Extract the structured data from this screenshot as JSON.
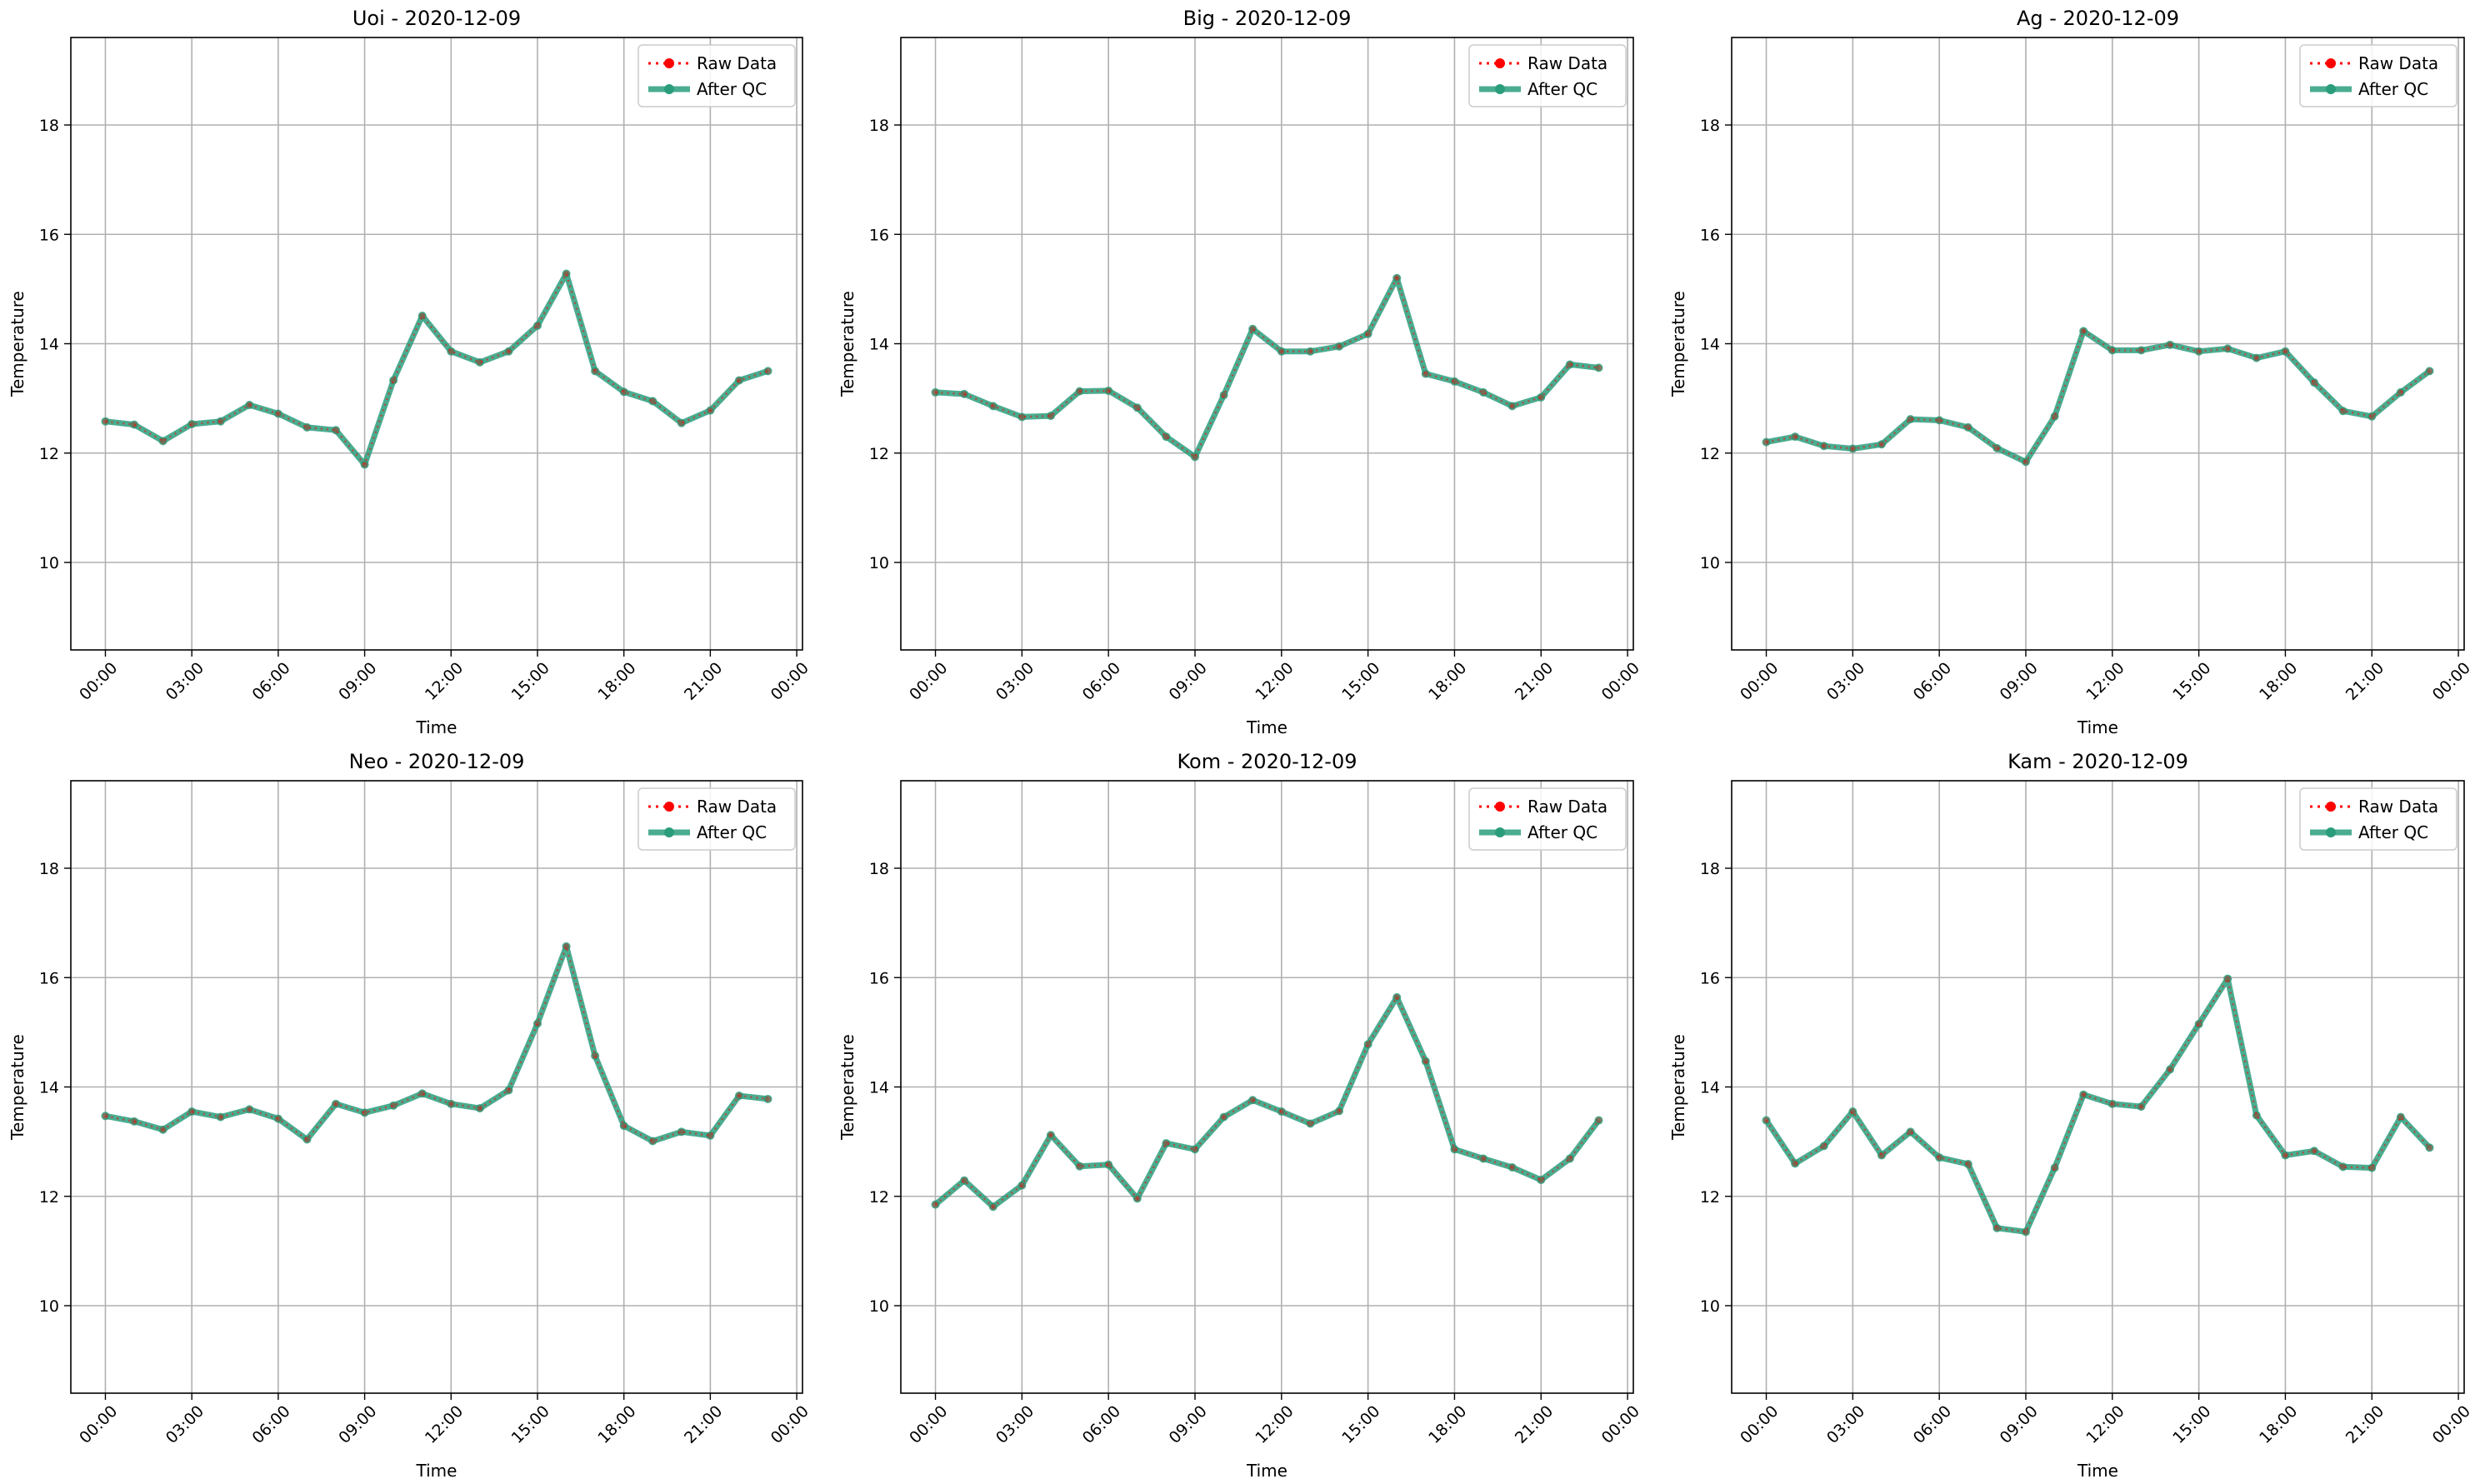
{
  "chart_data": [
    {
      "type": "line",
      "title": "Uoi - 2020-12-09",
      "xlabel": "Time",
      "ylabel": "Temperature",
      "x_ticks": [
        "00:00",
        "03:00",
        "06:00",
        "09:00",
        "12:00",
        "15:00",
        "18:00",
        "21:00",
        "00:00"
      ],
      "y_ticks": [
        "10",
        "12",
        "14",
        "16",
        "18"
      ],
      "xlim": [
        -1.2,
        24.2
      ],
      "ylim": [
        8.4,
        19.6
      ],
      "grid": true,
      "legend_position": "top-right",
      "x": [
        0,
        1,
        2,
        3,
        4,
        5,
        6,
        7,
        8,
        9,
        10,
        11,
        12,
        13,
        14,
        15,
        16,
        17,
        18,
        19,
        20,
        21,
        22,
        23
      ],
      "series": [
        {
          "name": "Raw Data",
          "color": "#ff0000",
          "style": "dotted",
          "values": [
            12.58,
            12.52,
            12.22,
            12.53,
            12.58,
            12.88,
            12.72,
            12.47,
            12.42,
            11.79,
            13.33,
            14.51,
            13.86,
            13.66,
            13.86,
            14.33,
            15.28,
            13.5,
            13.12,
            12.95,
            12.55,
            12.78,
            13.33,
            13.5
          ]
        },
        {
          "name": "After QC",
          "color": "#2a9d7c",
          "style": "solid",
          "values": [
            12.58,
            12.52,
            12.22,
            12.53,
            12.58,
            12.88,
            12.72,
            12.47,
            12.42,
            11.79,
            13.33,
            14.51,
            13.86,
            13.66,
            13.86,
            14.33,
            15.28,
            13.5,
            13.12,
            12.95,
            12.55,
            12.78,
            13.33,
            13.5
          ]
        }
      ]
    },
    {
      "type": "line",
      "title": "Big - 2020-12-09",
      "xlabel": "Time",
      "ylabel": "Temperature",
      "x_ticks": [
        "00:00",
        "03:00",
        "06:00",
        "09:00",
        "12:00",
        "15:00",
        "18:00",
        "21:00",
        "00:00"
      ],
      "y_ticks": [
        "10",
        "12",
        "14",
        "16",
        "18"
      ],
      "xlim": [
        -1.2,
        24.2
      ],
      "ylim": [
        8.4,
        19.6
      ],
      "grid": true,
      "legend_position": "top-right",
      "x": [
        0,
        1,
        2,
        3,
        4,
        5,
        6,
        7,
        8,
        9,
        10,
        11,
        12,
        13,
        14,
        15,
        16,
        17,
        18,
        19,
        20,
        21,
        22,
        23
      ],
      "series": [
        {
          "name": "Raw Data",
          "color": "#ff0000",
          "style": "dotted",
          "values": [
            13.11,
            13.08,
            12.86,
            12.66,
            12.68,
            13.13,
            13.14,
            12.83,
            12.3,
            11.93,
            13.06,
            14.27,
            13.86,
            13.86,
            13.95,
            14.18,
            15.2,
            13.45,
            13.31,
            13.11,
            12.86,
            13.02,
            13.62,
            13.56
          ]
        },
        {
          "name": "After QC",
          "color": "#2a9d7c",
          "style": "solid",
          "values": [
            13.11,
            13.08,
            12.86,
            12.66,
            12.68,
            13.13,
            13.14,
            12.83,
            12.3,
            11.93,
            13.06,
            14.27,
            13.86,
            13.86,
            13.95,
            14.18,
            15.2,
            13.45,
            13.31,
            13.11,
            12.86,
            13.02,
            13.62,
            13.56
          ]
        }
      ]
    },
    {
      "type": "line",
      "title": "Ag - 2020-12-09",
      "xlabel": "Time",
      "ylabel": "Temperature",
      "x_ticks": [
        "00:00",
        "03:00",
        "06:00",
        "09:00",
        "12:00",
        "15:00",
        "18:00",
        "21:00",
        "00:00"
      ],
      "y_ticks": [
        "10",
        "12",
        "14",
        "16",
        "18"
      ],
      "xlim": [
        -1.2,
        24.2
      ],
      "ylim": [
        8.4,
        19.6
      ],
      "grid": true,
      "legend_position": "top-right",
      "x": [
        0,
        1,
        2,
        3,
        4,
        5,
        6,
        7,
        8,
        9,
        10,
        11,
        12,
        13,
        14,
        15,
        16,
        17,
        18,
        19,
        20,
        21,
        22,
        23
      ],
      "series": [
        {
          "name": "Raw Data",
          "color": "#ff0000",
          "style": "dotted",
          "values": [
            12.2,
            12.3,
            12.13,
            12.08,
            12.16,
            12.62,
            12.6,
            12.47,
            12.09,
            11.84,
            12.67,
            14.23,
            13.88,
            13.88,
            13.98,
            13.86,
            13.91,
            13.74,
            13.86,
            13.29,
            12.77,
            12.67,
            13.11,
            13.5
          ]
        },
        {
          "name": "After QC",
          "color": "#2a9d7c",
          "style": "solid",
          "values": [
            12.2,
            12.3,
            12.13,
            12.08,
            12.16,
            12.62,
            12.6,
            12.47,
            12.09,
            11.84,
            12.67,
            14.23,
            13.88,
            13.88,
            13.98,
            13.86,
            13.91,
            13.74,
            13.86,
            13.29,
            12.77,
            12.67,
            13.11,
            13.5
          ]
        }
      ]
    },
    {
      "type": "line",
      "title": "Neo - 2020-12-09",
      "xlabel": "Time",
      "ylabel": "Temperature",
      "x_ticks": [
        "00:00",
        "03:00",
        "06:00",
        "09:00",
        "12:00",
        "15:00",
        "18:00",
        "21:00",
        "00:00"
      ],
      "y_ticks": [
        "10",
        "12",
        "14",
        "16",
        "18"
      ],
      "xlim": [
        -1.2,
        24.2
      ],
      "ylim": [
        8.4,
        19.6
      ],
      "grid": true,
      "legend_position": "top-right",
      "x": [
        0,
        1,
        2,
        3,
        4,
        5,
        6,
        7,
        8,
        9,
        10,
        11,
        12,
        13,
        14,
        15,
        16,
        17,
        18,
        19,
        20,
        21,
        22,
        23
      ],
      "series": [
        {
          "name": "Raw Data",
          "color": "#ff0000",
          "style": "dotted",
          "values": [
            13.47,
            13.37,
            13.22,
            13.55,
            13.45,
            13.59,
            13.42,
            13.04,
            13.69,
            13.53,
            13.66,
            13.88,
            13.69,
            13.61,
            13.94,
            15.16,
            16.57,
            14.57,
            13.29,
            13.01,
            13.18,
            13.11,
            13.84,
            13.78
          ]
        },
        {
          "name": "After QC",
          "color": "#2a9d7c",
          "style": "solid",
          "values": [
            13.47,
            13.37,
            13.22,
            13.55,
            13.45,
            13.59,
            13.42,
            13.04,
            13.69,
            13.53,
            13.66,
            13.88,
            13.69,
            13.61,
            13.94,
            15.16,
            16.57,
            14.57,
            13.29,
            13.01,
            13.18,
            13.11,
            13.84,
            13.78
          ]
        }
      ]
    },
    {
      "type": "line",
      "title": "Kom - 2020-12-09",
      "xlabel": "Time",
      "ylabel": "Temperature",
      "x_ticks": [
        "00:00",
        "03:00",
        "06:00",
        "09:00",
        "12:00",
        "15:00",
        "18:00",
        "21:00",
        "00:00"
      ],
      "y_ticks": [
        "10",
        "12",
        "14",
        "16",
        "18"
      ],
      "xlim": [
        -1.2,
        24.2
      ],
      "ylim": [
        8.4,
        19.6
      ],
      "grid": true,
      "legend_position": "top-right",
      "x": [
        0,
        1,
        2,
        3,
        4,
        5,
        6,
        7,
        8,
        9,
        10,
        11,
        12,
        13,
        14,
        15,
        16,
        17,
        18,
        19,
        20,
        21,
        22,
        23
      ],
      "series": [
        {
          "name": "Raw Data",
          "color": "#ff0000",
          "style": "dotted",
          "values": [
            11.85,
            12.29,
            11.81,
            12.2,
            13.12,
            12.55,
            12.58,
            11.96,
            12.97,
            12.86,
            13.45,
            13.76,
            13.55,
            13.33,
            13.56,
            14.78,
            15.64,
            14.47,
            12.86,
            12.69,
            12.53,
            12.3,
            12.69,
            13.39
          ]
        },
        {
          "name": "After QC",
          "color": "#2a9d7c",
          "style": "solid",
          "values": [
            11.85,
            12.29,
            11.81,
            12.2,
            13.12,
            12.55,
            12.58,
            11.96,
            12.97,
            12.86,
            13.45,
            13.76,
            13.55,
            13.33,
            13.56,
            14.78,
            15.64,
            14.47,
            12.86,
            12.69,
            12.53,
            12.3,
            12.69,
            13.39
          ]
        }
      ]
    },
    {
      "type": "line",
      "title": "Kam - 2020-12-09",
      "xlabel": "Time",
      "ylabel": "Temperature",
      "x_ticks": [
        "00:00",
        "03:00",
        "06:00",
        "09:00",
        "12:00",
        "15:00",
        "18:00",
        "21:00",
        "00:00"
      ],
      "y_ticks": [
        "10",
        "12",
        "14",
        "16",
        "18"
      ],
      "xlim": [
        -1.2,
        24.2
      ],
      "ylim": [
        8.4,
        19.6
      ],
      "grid": true,
      "legend_position": "top-right",
      "x": [
        0,
        1,
        2,
        3,
        4,
        5,
        6,
        7,
        8,
        9,
        10,
        11,
        12,
        13,
        14,
        15,
        16,
        17,
        18,
        19,
        20,
        21,
        22,
        23
      ],
      "series": [
        {
          "name": "Raw Data",
          "color": "#ff0000",
          "style": "dotted",
          "values": [
            13.39,
            12.6,
            12.92,
            13.55,
            12.75,
            13.18,
            12.71,
            12.59,
            11.42,
            11.35,
            12.52,
            13.86,
            13.69,
            13.64,
            14.32,
            15.15,
            15.98,
            13.48,
            12.75,
            12.83,
            12.54,
            12.52,
            13.45,
            12.89
          ]
        },
        {
          "name": "After QC",
          "color": "#2a9d7c",
          "style": "solid",
          "values": [
            13.39,
            12.6,
            12.92,
            13.55,
            12.75,
            13.18,
            12.71,
            12.59,
            11.42,
            11.35,
            12.52,
            13.86,
            13.69,
            13.64,
            14.32,
            15.15,
            15.98,
            13.48,
            12.75,
            12.83,
            12.54,
            12.52,
            13.45,
            12.89
          ]
        }
      ]
    }
  ]
}
